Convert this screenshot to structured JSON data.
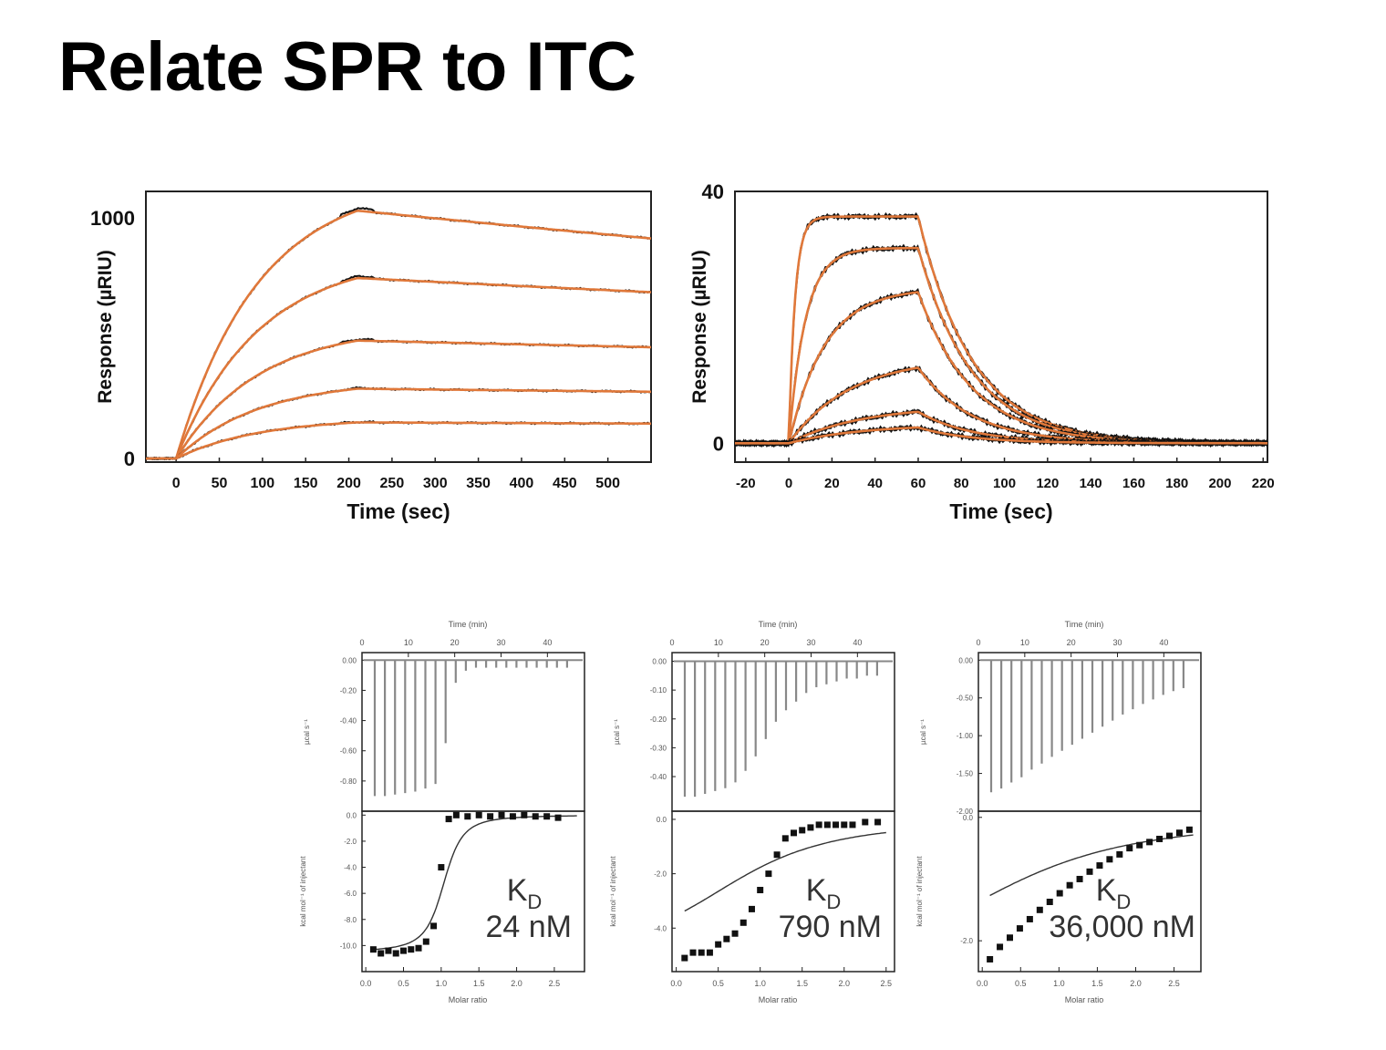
{
  "slide": {
    "title": "Relate SPR to ITC"
  },
  "colors": {
    "fit": "#e0783a",
    "data": "#111111",
    "frame": "#222222",
    "itc_trace": "#888888"
  },
  "chart_data": [
    {
      "type": "line",
      "xlabel": "Time (sec)",
      "ylabel": "Response (µRIU)",
      "xlim": [
        -35,
        550
      ],
      "ylim": [
        -15,
        1110
      ],
      "x_ticks": [
        0,
        50,
        100,
        150,
        200,
        250,
        300,
        350,
        400,
        450,
        500
      ],
      "y_tick_labels": [
        {
          "value": 0,
          "label": "0"
        },
        {
          "value": 1000,
          "label": "1000"
        }
      ],
      "model": {
        "association_end": 210,
        "association_rate": 0.0105
      },
      "series": [
        {
          "plateau": 1030,
          "dissociation_rate": 0.00035
        },
        {
          "plateau": 750,
          "dissociation_rate": 0.00024
        },
        {
          "plateau": 490,
          "dissociation_rate": 0.00017
        },
        {
          "plateau": 290,
          "dissociation_rate": 0.00013
        },
        {
          "plateau": 150,
          "dissociation_rate": 0.0001
        }
      ]
    },
    {
      "type": "line",
      "xlabel": "Time (sec)",
      "ylabel": "Response (µRIU)",
      "xlim": [
        -25,
        222
      ],
      "ylim": [
        -3,
        40
      ],
      "x_ticks": [
        -20,
        0,
        20,
        40,
        60,
        80,
        100,
        120,
        140,
        160,
        180,
        200,
        220
      ],
      "y_tick_labels": [
        {
          "value": 0,
          "label": "0"
        },
        {
          "value": 40,
          "label": "40"
        }
      ],
      "model": {
        "association_end": 60,
        "dissociation_rate": 0.04
      },
      "series": [
        {
          "plateau": 36,
          "association_rate": 0.35
        },
        {
          "plateau": 31,
          "association_rate": 0.13
        },
        {
          "plateau": 24,
          "association_rate": 0.06
        },
        {
          "plateau": 12,
          "association_rate": 0.035
        },
        {
          "plateau": 5,
          "association_rate": 0.03
        },
        {
          "plateau": 2.5,
          "association_rate": 0.03
        }
      ]
    },
    {
      "type": "line",
      "kd_label": "24 nM",
      "top": {
        "xlabel": "Time (min)",
        "ylabel": "µcal s⁻¹",
        "xlim": [
          0,
          48
        ],
        "ylim": [
          -1.0,
          0.05
        ],
        "x_ticks": [
          0,
          10,
          20,
          30,
          40
        ],
        "y_ticks": [
          {
            "value": 0.0,
            "label": "0.00"
          },
          {
            "value": -0.2,
            "label": "-0.20"
          },
          {
            "value": -0.4,
            "label": "-0.40"
          },
          {
            "value": -0.6,
            "label": "-0.60"
          },
          {
            "value": -0.8,
            "label": "-0.80"
          }
        ],
        "injection_peaks": [
          -0.9,
          -0.9,
          -0.89,
          -0.88,
          -0.87,
          -0.85,
          -0.82,
          -0.55,
          -0.15,
          -0.07,
          -0.05,
          -0.05,
          -0.05,
          -0.05,
          -0.05,
          -0.05,
          -0.05,
          -0.05,
          -0.05,
          -0.05
        ]
      },
      "bottom": {
        "xlabel": "Molar ratio",
        "ylabel": "kcal mol⁻¹ of injectant",
        "xlim": [
          -0.05,
          2.9
        ],
        "ylim": [
          -12,
          0.3
        ],
        "x_ticks": [
          0.0,
          0.5,
          1.0,
          1.5,
          2.0,
          2.5
        ],
        "y_ticks": [
          {
            "value": 0,
            "label": "0.0"
          },
          {
            "value": -2,
            "label": "-2.0"
          },
          {
            "value": -4,
            "label": "-4.0"
          },
          {
            "value": -6,
            "label": "-6.0"
          },
          {
            "value": -8,
            "label": "-8.0"
          },
          {
            "value": -10,
            "label": "-10.0"
          }
        ],
        "x": [
          0.1,
          0.2,
          0.3,
          0.4,
          0.5,
          0.6,
          0.7,
          0.8,
          0.9,
          1.0,
          1.1,
          1.2,
          1.35,
          1.5,
          1.65,
          1.8,
          1.95,
          2.1,
          2.25,
          2.4,
          2.55
        ],
        "y": [
          -10.3,
          -10.6,
          -10.4,
          -10.6,
          -10.4,
          -10.3,
          -10.2,
          -9.7,
          -8.5,
          -4.0,
          -0.3,
          0.0,
          -0.1,
          0.0,
          -0.1,
          0.0,
          -0.1,
          0.0,
          -0.1,
          -0.1,
          -0.2
        ],
        "fit": {
          "n": 1.05,
          "K": 60,
          "dH": -10.5
        }
      }
    },
    {
      "type": "line",
      "kd_label": "790 nM",
      "top": {
        "xlabel": "Time (min)",
        "ylabel": "µcal s⁻¹",
        "xlim": [
          0,
          48
        ],
        "ylim": [
          -0.52,
          0.03
        ],
        "x_ticks": [
          0,
          10,
          20,
          30,
          40
        ],
        "y_ticks": [
          {
            "value": 0.0,
            "label": "0.00"
          },
          {
            "value": -0.1,
            "label": "-0.10"
          },
          {
            "value": -0.2,
            "label": "-0.20"
          },
          {
            "value": -0.3,
            "label": "-0.30"
          },
          {
            "value": -0.4,
            "label": "-0.40"
          }
        ],
        "injection_peaks": [
          -0.47,
          -0.47,
          -0.46,
          -0.45,
          -0.44,
          -0.42,
          -0.38,
          -0.33,
          -0.27,
          -0.21,
          -0.17,
          -0.14,
          -0.11,
          -0.09,
          -0.08,
          -0.07,
          -0.06,
          -0.06,
          -0.05,
          -0.05
        ]
      },
      "bottom": {
        "xlabel": "Molar ratio",
        "ylabel": "kcal mol⁻¹ of injectant",
        "xlim": [
          -0.05,
          2.6
        ],
        "ylim": [
          -5.6,
          0.3
        ],
        "x_ticks": [
          0.0,
          0.5,
          1.0,
          1.5,
          2.0,
          2.5
        ],
        "y_ticks": [
          {
            "value": 0,
            "label": "0.0"
          },
          {
            "value": -2,
            "label": "-2.0"
          },
          {
            "value": -4,
            "label": "-4.0"
          }
        ],
        "x": [
          0.1,
          0.2,
          0.3,
          0.4,
          0.5,
          0.6,
          0.7,
          0.8,
          0.9,
          1.0,
          1.1,
          1.2,
          1.3,
          1.4,
          1.5,
          1.6,
          1.7,
          1.8,
          1.9,
          2.0,
          2.1,
          2.25,
          2.4
        ],
        "y": [
          -5.1,
          -4.9,
          -4.9,
          -4.9,
          -4.6,
          -4.4,
          -4.2,
          -3.8,
          -3.3,
          -2.6,
          -2.0,
          -1.3,
          -0.7,
          -0.5,
          -0.4,
          -0.3,
          -0.2,
          -0.2,
          -0.2,
          -0.2,
          -0.2,
          -0.1,
          -0.1
        ],
        "fit": {
          "n": 1.0,
          "K": 2.0,
          "dH": -5.3
        }
      }
    },
    {
      "type": "line",
      "kd_label": "36,000 nM",
      "top": {
        "xlabel": "Time (min)",
        "ylabel": "µcal s⁻¹",
        "xlim": [
          0,
          48
        ],
        "ylim": [
          -2.0,
          0.1
        ],
        "x_ticks": [
          0,
          10,
          20,
          30,
          40
        ],
        "y_ticks": [
          {
            "value": 0.0,
            "label": "0.00"
          },
          {
            "value": -0.5,
            "label": "-0.50"
          },
          {
            "value": -1.0,
            "label": "-1.00"
          },
          {
            "value": -1.5,
            "label": "-1.50"
          },
          {
            "value": -2.0,
            "label": "-2.00"
          }
        ],
        "injection_peaks": [
          -1.75,
          -1.7,
          -1.62,
          -1.55,
          -1.45,
          -1.37,
          -1.28,
          -1.2,
          -1.12,
          -1.04,
          -0.96,
          -0.88,
          -0.8,
          -0.72,
          -0.65,
          -0.58,
          -0.52,
          -0.46,
          -0.41,
          -0.37
        ]
      },
      "bottom": {
        "xlabel": "Molar ratio",
        "ylabel": "kcal mol⁻¹ of injectant",
        "xlim": [
          -0.05,
          2.85
        ],
        "ylim": [
          -2.5,
          0.1
        ],
        "x_ticks": [
          0.0,
          0.5,
          1.0,
          1.5,
          2.0,
          2.5
        ],
        "y_ticks": [
          {
            "value": 0,
            "label": "0.0"
          },
          {
            "value": -2,
            "label": "-2.0"
          }
        ],
        "x": [
          0.1,
          0.23,
          0.36,
          0.49,
          0.62,
          0.75,
          0.88,
          1.01,
          1.14,
          1.27,
          1.4,
          1.53,
          1.66,
          1.79,
          1.92,
          2.05,
          2.18,
          2.31,
          2.44,
          2.57,
          2.7
        ],
        "y": [
          -2.3,
          -2.1,
          -1.95,
          -1.8,
          -1.65,
          -1.5,
          -1.37,
          -1.23,
          -1.1,
          -1.0,
          -0.88,
          -0.78,
          -0.68,
          -0.6,
          -0.5,
          -0.45,
          -0.4,
          -0.35,
          -0.3,
          -0.25,
          -0.2
        ],
        "fit": {
          "n": 1.0,
          "K": 0.85,
          "dH": -2.9
        }
      }
    }
  ],
  "kd_symbol": {
    "letter": "K",
    "subscript": "D"
  }
}
